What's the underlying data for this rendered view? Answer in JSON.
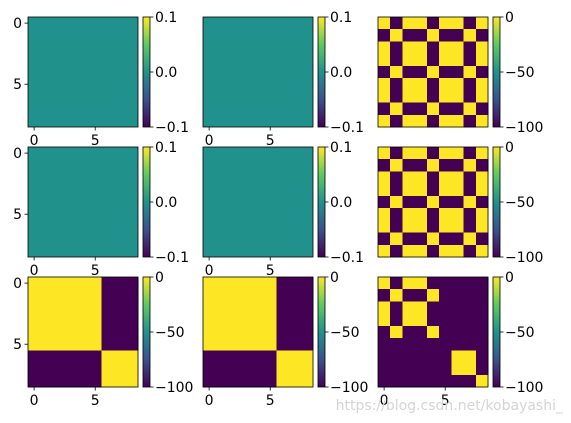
{
  "figure": {
    "background": "#ffffff",
    "watermark": "https://blog.csdn.net/kobayashi_"
  },
  "chart_data": [
    {
      "type": "heatmap",
      "cmap": "viridis",
      "shape": [
        9,
        9
      ],
      "vmin": -0.1,
      "vmax": 0.1,
      "fill": "constant",
      "value": 0.0,
      "x_ticks": [
        "0",
        "5"
      ],
      "y_ticks": [
        "0",
        "5"
      ],
      "colorbar_ticks": [
        "0.1",
        "0.0",
        "−0.1"
      ]
    },
    {
      "type": "heatmap",
      "cmap": "viridis",
      "shape": [
        9,
        9
      ],
      "vmin": -0.1,
      "vmax": 0.1,
      "fill": "constant",
      "value": 0.0,
      "x_ticks": [
        "0",
        "5"
      ],
      "y_ticks": [],
      "colorbar_ticks": [
        "0.1",
        "0.0",
        "−0.1"
      ]
    },
    {
      "type": "heatmap",
      "cmap": "viridis",
      "shape": [
        9,
        9
      ],
      "vmin": -100,
      "vmax": 0,
      "grid": [
        [
          1,
          0,
          1,
          1,
          0,
          1,
          1,
          0,
          1
        ],
        [
          0,
          1,
          0,
          0,
          1,
          0,
          0,
          1,
          0
        ],
        [
          1,
          0,
          1,
          1,
          0,
          1,
          1,
          0,
          1
        ],
        [
          1,
          0,
          1,
          1,
          0,
          1,
          1,
          0,
          1
        ],
        [
          0,
          1,
          0,
          0,
          1,
          0,
          0,
          1,
          0
        ],
        [
          1,
          0,
          1,
          1,
          0,
          1,
          1,
          0,
          1
        ],
        [
          1,
          0,
          1,
          1,
          0,
          1,
          1,
          0,
          1
        ],
        [
          0,
          1,
          0,
          0,
          1,
          0,
          0,
          1,
          0
        ],
        [
          1,
          0,
          1,
          1,
          0,
          1,
          1,
          0,
          1
        ]
      ],
      "x_ticks": [],
      "y_ticks": [],
      "colorbar_ticks": [
        "0",
        "−50",
        "−100"
      ]
    },
    {
      "type": "heatmap",
      "cmap": "viridis",
      "shape": [
        9,
        9
      ],
      "vmin": -0.1,
      "vmax": 0.1,
      "fill": "constant",
      "value": 0.0,
      "x_ticks": [
        "0",
        "5"
      ],
      "y_ticks": [
        "0",
        "5"
      ],
      "colorbar_ticks": [
        "0.1",
        "0.0",
        "−0.1"
      ]
    },
    {
      "type": "heatmap",
      "cmap": "viridis",
      "shape": [
        9,
        9
      ],
      "vmin": -0.1,
      "vmax": 0.1,
      "fill": "constant",
      "value": 0.0,
      "x_ticks": [
        "0",
        "5"
      ],
      "y_ticks": [],
      "colorbar_ticks": [
        "0.1",
        "0.0",
        "−0.1"
      ]
    },
    {
      "type": "heatmap",
      "cmap": "viridis",
      "shape": [
        9,
        9
      ],
      "vmin": -100,
      "vmax": 0,
      "grid": [
        [
          1,
          0,
          1,
          1,
          0,
          1,
          1,
          0,
          1
        ],
        [
          0,
          1,
          0,
          0,
          1,
          0,
          0,
          1,
          0
        ],
        [
          1,
          0,
          1,
          1,
          0,
          1,
          1,
          0,
          1
        ],
        [
          1,
          0,
          1,
          1,
          0,
          1,
          1,
          0,
          1
        ],
        [
          0,
          1,
          0,
          0,
          1,
          0,
          0,
          1,
          0
        ],
        [
          1,
          0,
          1,
          1,
          0,
          1,
          1,
          0,
          1
        ],
        [
          1,
          0,
          1,
          1,
          0,
          1,
          1,
          0,
          1
        ],
        [
          0,
          1,
          0,
          0,
          1,
          0,
          0,
          1,
          0
        ],
        [
          1,
          0,
          1,
          1,
          0,
          1,
          1,
          0,
          1
        ]
      ],
      "x_ticks": [],
      "y_ticks": [],
      "colorbar_ticks": [
        "0",
        "−50",
        "−100"
      ]
    },
    {
      "type": "heatmap",
      "cmap": "viridis",
      "shape": [
        9,
        9
      ],
      "vmin": -100,
      "vmax": 0,
      "grid": [
        [
          1,
          1,
          1,
          1,
          1,
          1,
          0,
          0,
          0
        ],
        [
          1,
          1,
          1,
          1,
          1,
          1,
          0,
          0,
          0
        ],
        [
          1,
          1,
          1,
          1,
          1,
          1,
          0,
          0,
          0
        ],
        [
          1,
          1,
          1,
          1,
          1,
          1,
          0,
          0,
          0
        ],
        [
          1,
          1,
          1,
          1,
          1,
          1,
          0,
          0,
          0
        ],
        [
          1,
          1,
          1,
          1,
          1,
          1,
          0,
          0,
          0
        ],
        [
          0,
          0,
          0,
          0,
          0,
          0,
          1,
          1,
          1
        ],
        [
          0,
          0,
          0,
          0,
          0,
          0,
          1,
          1,
          1
        ],
        [
          0,
          0,
          0,
          0,
          0,
          0,
          1,
          1,
          1
        ]
      ],
      "x_ticks": [
        "0",
        "5"
      ],
      "y_ticks": [
        "0",
        "5"
      ],
      "colorbar_ticks": [
        "0",
        "−50",
        "−100"
      ]
    },
    {
      "type": "heatmap",
      "cmap": "viridis",
      "shape": [
        9,
        9
      ],
      "vmin": -100,
      "vmax": 0,
      "grid": [
        [
          1,
          1,
          1,
          1,
          1,
          1,
          0,
          0,
          0
        ],
        [
          1,
          1,
          1,
          1,
          1,
          1,
          0,
          0,
          0
        ],
        [
          1,
          1,
          1,
          1,
          1,
          1,
          0,
          0,
          0
        ],
        [
          1,
          1,
          1,
          1,
          1,
          1,
          0,
          0,
          0
        ],
        [
          1,
          1,
          1,
          1,
          1,
          1,
          0,
          0,
          0
        ],
        [
          1,
          1,
          1,
          1,
          1,
          1,
          0,
          0,
          0
        ],
        [
          0,
          0,
          0,
          0,
          0,
          0,
          1,
          1,
          1
        ],
        [
          0,
          0,
          0,
          0,
          0,
          0,
          1,
          1,
          1
        ],
        [
          0,
          0,
          0,
          0,
          0,
          0,
          1,
          1,
          1
        ]
      ],
      "x_ticks": [
        "0",
        "5"
      ],
      "y_ticks": [],
      "colorbar_ticks": [
        "0",
        "−50",
        "−100"
      ]
    },
    {
      "type": "heatmap",
      "cmap": "viridis",
      "shape": [
        9,
        9
      ],
      "vmin": -100,
      "vmax": 0,
      "grid": [
        [
          1,
          0,
          1,
          1,
          0,
          0,
          0,
          0,
          0
        ],
        [
          0,
          1,
          0,
          0,
          1,
          0,
          0,
          0,
          0
        ],
        [
          1,
          0,
          1,
          1,
          0,
          0,
          0,
          0,
          0
        ],
        [
          1,
          0,
          1,
          1,
          0,
          0,
          0,
          0,
          0
        ],
        [
          0,
          1,
          0,
          0,
          1,
          0,
          0,
          0,
          0
        ],
        [
          0,
          0,
          0,
          0,
          0,
          0,
          0,
          0,
          0
        ],
        [
          0,
          0,
          0,
          0,
          0,
          0,
          1,
          1,
          0
        ],
        [
          0,
          0,
          0,
          0,
          0,
          0,
          1,
          1,
          0
        ],
        [
          0,
          0,
          0,
          0,
          0,
          0,
          0,
          0,
          1
        ]
      ],
      "x_ticks": [
        "0",
        "5"
      ],
      "y_ticks": [],
      "colorbar_ticks": [
        "0",
        "−50",
        "−100"
      ]
    }
  ]
}
